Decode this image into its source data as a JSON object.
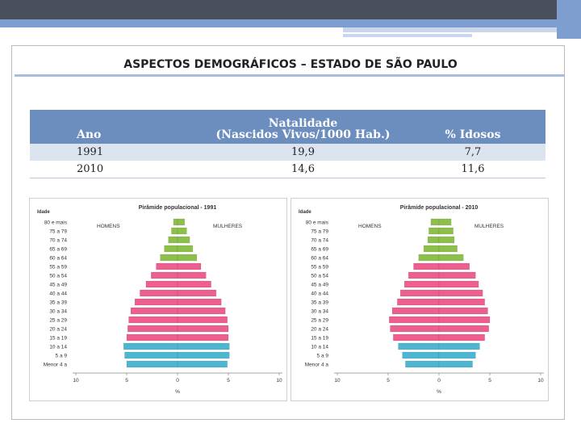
{
  "page": {
    "title": "ASPECTOS DEMOGRÁFICOS – ESTADO DE SÃO PAULO"
  },
  "stats_table": {
    "headers": {
      "year": "Ano",
      "natality_line1": "Natalidade",
      "natality_line2": "(Nascidos Vivos/1000 Hab.)",
      "elderly": "% Idosos"
    },
    "rows": [
      {
        "year": "1991",
        "natality": "19,9",
        "elderly": "7,7"
      },
      {
        "year": "2010",
        "natality": "14,6",
        "elderly": "11,6"
      }
    ]
  },
  "colors": {
    "elderly": "#8dc04b",
    "adult": "#ec5f8f",
    "young": "#4db6d1",
    "header_blue": "#6c8ebf"
  },
  "chart_data": [
    {
      "type": "bar",
      "orientation": "horizontal-population-pyramid",
      "title": "Pirâmide populacional - 1991",
      "ylabel": "Idade",
      "xlabel": "%",
      "left_label": "HOMENS",
      "right_label": "MULHERES",
      "xlim": [
        -10,
        10
      ],
      "x_ticks": [
        "10",
        "5",
        "0",
        "5",
        "10"
      ],
      "categories": [
        "80 e mais",
        "75 a 79",
        "70 a 74",
        "65 a 69",
        "60 a 64",
        "55 a 59",
        "50 a 54",
        "45 a 49",
        "40 a 44",
        "35 a 39",
        "30 a 34",
        "25 a 29",
        "20 a 24",
        "15 a 19",
        "10 a 14",
        "5 a 9",
        "Menor 4 a"
      ],
      "series": [
        {
          "name": "HOMENS",
          "values": [
            0.4,
            0.6,
            0.9,
            1.3,
            1.7,
            2.1,
            2.6,
            3.1,
            3.7,
            4.2,
            4.6,
            4.8,
            4.9,
            5.0,
            5.3,
            5.2,
            5.0
          ]
        },
        {
          "name": "MULHERES",
          "values": [
            0.7,
            0.9,
            1.2,
            1.5,
            1.9,
            2.3,
            2.8,
            3.3,
            3.8,
            4.3,
            4.7,
            4.9,
            5.0,
            5.0,
            5.1,
            5.1,
            4.9
          ]
        }
      ],
      "groups": [
        "elderly",
        "elderly",
        "elderly",
        "elderly",
        "elderly",
        "adult",
        "adult",
        "adult",
        "adult",
        "adult",
        "adult",
        "adult",
        "adult",
        "adult",
        "young",
        "young",
        "young"
      ]
    },
    {
      "type": "bar",
      "orientation": "horizontal-population-pyramid",
      "title": "Pirâmide populacional - 2010",
      "ylabel": "Idade",
      "xlabel": "%",
      "left_label": "HOMENS",
      "right_label": "MULHERES",
      "xlim": [
        -10,
        10
      ],
      "x_ticks": [
        "10",
        "5",
        "0",
        "5",
        "10"
      ],
      "categories": [
        "80 e mais",
        "75 a 79",
        "70 a 74",
        "65 a 69",
        "60 a 64",
        "55 a 59",
        "50 a 54",
        "45 a 49",
        "40 a 44",
        "35 a 39",
        "30 a 34",
        "25 a 29",
        "20 a 24",
        "15 a 19",
        "10 a 14",
        "5 a 9",
        "Menor 4 a"
      ],
      "series": [
        {
          "name": "HOMENS",
          "values": [
            0.8,
            1.0,
            1.1,
            1.5,
            2.0,
            2.5,
            3.0,
            3.4,
            3.8,
            4.1,
            4.6,
            4.9,
            4.8,
            4.5,
            4.0,
            3.6,
            3.3
          ]
        },
        {
          "name": "MULHERES",
          "values": [
            1.2,
            1.4,
            1.5,
            1.8,
            2.4,
            3.0,
            3.6,
            3.9,
            4.3,
            4.5,
            4.8,
            5.0,
            4.9,
            4.5,
            4.0,
            3.6,
            3.3
          ]
        }
      ],
      "groups": [
        "elderly",
        "elderly",
        "elderly",
        "elderly",
        "elderly",
        "adult",
        "adult",
        "adult",
        "adult",
        "adult",
        "adult",
        "adult",
        "adult",
        "adult",
        "young",
        "young",
        "young"
      ]
    }
  ]
}
